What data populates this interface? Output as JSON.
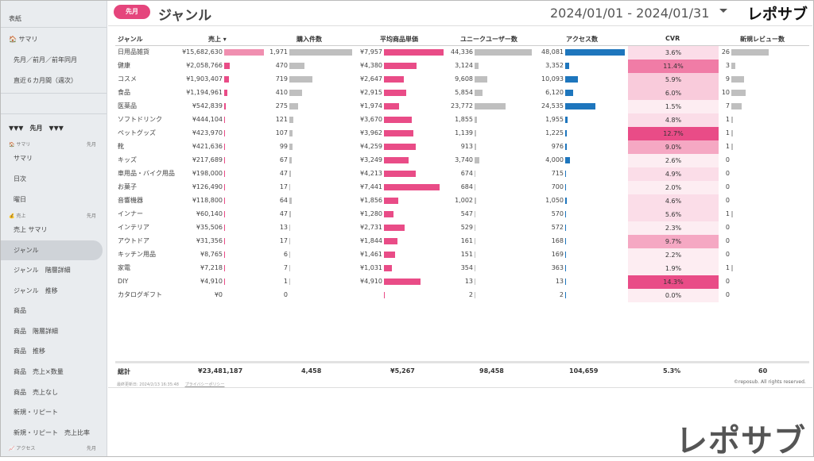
{
  "sidebar": {
    "top_label": "表紙",
    "summary_label": "サマリ",
    "items_top": [
      "先月／前月／前年同月",
      "直近６カ月間（週次）"
    ],
    "section_head": "▼▼▼　先月　▼▼▼",
    "sections": [
      {
        "label": "サマリ",
        "right": "先月",
        "items": [
          "サマリ",
          "日次",
          "曜日"
        ]
      },
      {
        "label": "売上",
        "right": "先月",
        "items": [
          "売上 サマリ",
          "ジャンル",
          "ジャンル　階層詳細",
          "ジャンル　推移",
          "商品",
          "商品　階層詳細",
          "商品　推移",
          "商品　売上×数量",
          "商品　売上なし",
          "新規・リピート",
          "新規・リピート　売上比率"
        ]
      },
      {
        "label": "アクセス",
        "right": "先月"
      }
    ],
    "active_item": "ジャンル"
  },
  "header": {
    "badge": "先月",
    "title": "ジャンル",
    "date_range": "2024/01/01 - 2024/01/31",
    "logo": "レポサブ"
  },
  "columns": [
    "ジャンル",
    "売上 ▾",
    "購入件数",
    "平均商品単価",
    "ユニークユーザー数",
    "アクセス数",
    "CVR",
    "新規レビュー数"
  ],
  "rows": [
    {
      "genre": "日用品雑貨",
      "sales": 15682630,
      "sales_text": "¥15,682,630",
      "orders": 1971,
      "orders_text": "1,971",
      "avg": 7957,
      "avg_text": "¥7,957",
      "uu": 44336,
      "uu_text": "44,336",
      "access": 48081,
      "access_text": "48,081",
      "cvr": 3.6,
      "cvr_text": "3.6%",
      "reviews": 26,
      "reviews_text": "26"
    },
    {
      "genre": "健康",
      "sales": 2058766,
      "sales_text": "¥2,058,766",
      "orders": 470,
      "orders_text": "470",
      "avg": 4380,
      "avg_text": "¥4,380",
      "uu": 3124,
      "uu_text": "3,124",
      "access": 3352,
      "access_text": "3,352",
      "cvr": 11.4,
      "cvr_text": "11.4%",
      "reviews": 3,
      "reviews_text": "3"
    },
    {
      "genre": "コスメ",
      "sales": 1903407,
      "sales_text": "¥1,903,407",
      "orders": 719,
      "orders_text": "719",
      "avg": 2647,
      "avg_text": "¥2,647",
      "uu": 9608,
      "uu_text": "9,608",
      "access": 10093,
      "access_text": "10,093",
      "cvr": 5.9,
      "cvr_text": "5.9%",
      "reviews": 9,
      "reviews_text": "9"
    },
    {
      "genre": "食品",
      "sales": 1194961,
      "sales_text": "¥1,194,961",
      "orders": 410,
      "orders_text": "410",
      "avg": 2915,
      "avg_text": "¥2,915",
      "uu": 5854,
      "uu_text": "5,854",
      "access": 6120,
      "access_text": "6,120",
      "cvr": 6.0,
      "cvr_text": "6.0%",
      "reviews": 10,
      "reviews_text": "10"
    },
    {
      "genre": "医薬品",
      "sales": 542839,
      "sales_text": "¥542,839",
      "orders": 275,
      "orders_text": "275",
      "avg": 1974,
      "avg_text": "¥1,974",
      "uu": 23772,
      "uu_text": "23,772",
      "access": 24535,
      "access_text": "24,535",
      "cvr": 1.5,
      "cvr_text": "1.5%",
      "reviews": 7,
      "reviews_text": "7"
    },
    {
      "genre": "ソフトドリンク",
      "sales": 444104,
      "sales_text": "¥444,104",
      "orders": 121,
      "orders_text": "121",
      "avg": 3670,
      "avg_text": "¥3,670",
      "uu": 1855,
      "uu_text": "1,855",
      "access": 1955,
      "access_text": "1,955",
      "cvr": 4.8,
      "cvr_text": "4.8%",
      "reviews": 1,
      "reviews_text": "1"
    },
    {
      "genre": "ペットグッズ",
      "sales": 423970,
      "sales_text": "¥423,970",
      "orders": 107,
      "orders_text": "107",
      "avg": 3962,
      "avg_text": "¥3,962",
      "uu": 1139,
      "uu_text": "1,139",
      "access": 1225,
      "access_text": "1,225",
      "cvr": 12.7,
      "cvr_text": "12.7%",
      "reviews": 1,
      "reviews_text": "1"
    },
    {
      "genre": "靴",
      "sales": 421636,
      "sales_text": "¥421,636",
      "orders": 99,
      "orders_text": "99",
      "avg": 4259,
      "avg_text": "¥4,259",
      "uu": 913,
      "uu_text": "913",
      "access": 976,
      "access_text": "976",
      "cvr": 9.0,
      "cvr_text": "9.0%",
      "reviews": 1,
      "reviews_text": "1"
    },
    {
      "genre": "キッズ",
      "sales": 217689,
      "sales_text": "¥217,689",
      "orders": 67,
      "orders_text": "67",
      "avg": 3249,
      "avg_text": "¥3,249",
      "uu": 3740,
      "uu_text": "3,740",
      "access": 4000,
      "access_text": "4,000",
      "cvr": 2.6,
      "cvr_text": "2.6%",
      "reviews": 0,
      "reviews_text": "0"
    },
    {
      "genre": "車用品・バイク用品",
      "sales": 198000,
      "sales_text": "¥198,000",
      "orders": 47,
      "orders_text": "47",
      "avg": 4213,
      "avg_text": "¥4,213",
      "uu": 674,
      "uu_text": "674",
      "access": 715,
      "access_text": "715",
      "cvr": 4.9,
      "cvr_text": "4.9%",
      "reviews": 0,
      "reviews_text": "0"
    },
    {
      "genre": "お菓子",
      "sales": 126490,
      "sales_text": "¥126,490",
      "orders": 17,
      "orders_text": "17",
      "avg": 7441,
      "avg_text": "¥7,441",
      "uu": 684,
      "uu_text": "684",
      "access": 700,
      "access_text": "700",
      "cvr": 2.0,
      "cvr_text": "2.0%",
      "reviews": 0,
      "reviews_text": "0"
    },
    {
      "genre": "音響機器",
      "sales": 118800,
      "sales_text": "¥118,800",
      "orders": 64,
      "orders_text": "64",
      "avg": 1856,
      "avg_text": "¥1,856",
      "uu": 1002,
      "uu_text": "1,002",
      "access": 1050,
      "access_text": "1,050",
      "cvr": 4.6,
      "cvr_text": "4.6%",
      "reviews": 0,
      "reviews_text": "0"
    },
    {
      "genre": "インナー",
      "sales": 60140,
      "sales_text": "¥60,140",
      "orders": 47,
      "orders_text": "47",
      "avg": 1280,
      "avg_text": "¥1,280",
      "uu": 547,
      "uu_text": "547",
      "access": 570,
      "access_text": "570",
      "cvr": 5.6,
      "cvr_text": "5.6%",
      "reviews": 1,
      "reviews_text": "1"
    },
    {
      "genre": "インテリア",
      "sales": 35506,
      "sales_text": "¥35,506",
      "orders": 13,
      "orders_text": "13",
      "avg": 2731,
      "avg_text": "¥2,731",
      "uu": 529,
      "uu_text": "529",
      "access": 572,
      "access_text": "572",
      "cvr": 2.3,
      "cvr_text": "2.3%",
      "reviews": 0,
      "reviews_text": "0"
    },
    {
      "genre": "アウトドア",
      "sales": 31356,
      "sales_text": "¥31,356",
      "orders": 17,
      "orders_text": "17",
      "avg": 1844,
      "avg_text": "¥1,844",
      "uu": 161,
      "uu_text": "161",
      "access": 168,
      "access_text": "168",
      "cvr": 9.7,
      "cvr_text": "9.7%",
      "reviews": 0,
      "reviews_text": "0"
    },
    {
      "genre": "キッチン用品",
      "sales": 8765,
      "sales_text": "¥8,765",
      "orders": 6,
      "orders_text": "6",
      "avg": 1461,
      "avg_text": "¥1,461",
      "uu": 151,
      "uu_text": "151",
      "access": 169,
      "access_text": "169",
      "cvr": 2.2,
      "cvr_text": "2.2%",
      "reviews": 0,
      "reviews_text": "0"
    },
    {
      "genre": "家電",
      "sales": 7218,
      "sales_text": "¥7,218",
      "orders": 7,
      "orders_text": "7",
      "avg": 1031,
      "avg_text": "¥1,031",
      "uu": 354,
      "uu_text": "354",
      "access": 363,
      "access_text": "363",
      "cvr": 1.9,
      "cvr_text": "1.9%",
      "reviews": 1,
      "reviews_text": "1"
    },
    {
      "genre": "DIY",
      "sales": 4910,
      "sales_text": "¥4,910",
      "orders": 1,
      "orders_text": "1",
      "avg": 4910,
      "avg_text": "¥4,910",
      "uu": 13,
      "uu_text": "13",
      "access": 13,
      "access_text": "13",
      "cvr": 14.3,
      "cvr_text": "14.3%",
      "reviews": 0,
      "reviews_text": "0"
    },
    {
      "genre": "カタログギフト",
      "sales": 0,
      "sales_text": "¥0",
      "orders": 0,
      "orders_text": "0",
      "avg": 0,
      "avg_text": "",
      "uu": 2,
      "uu_text": "2",
      "access": 2,
      "access_text": "2",
      "cvr": 0.0,
      "cvr_text": "0.0%",
      "reviews": 0,
      "reviews_text": "0"
    }
  ],
  "totals": {
    "label": "総計",
    "sales": "¥23,481,187",
    "orders": "4,458",
    "avg": "¥5,267",
    "uu": "98,458",
    "access": "104,659",
    "cvr": "5.3%",
    "reviews": "60"
  },
  "footer": {
    "updated": "最終更新日: 2024/2/13 16:35:48",
    "privacy": "プライバシーポリシー",
    "copyright": "©reposub. All rights reserved."
  },
  "brand_watermark": "レポサブ",
  "colors": {
    "pink": "#e94c87",
    "light_pink": "#f08fb0",
    "gray": "#bfbfbf",
    "blue": "#1e76bd",
    "accent": "#e5457c"
  }
}
